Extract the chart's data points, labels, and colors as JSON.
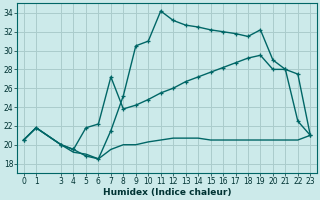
{
  "title": "",
  "xlabel": "Humidex (Indice chaleur)",
  "bg_color": "#cceaea",
  "grid_color": "#aacccc",
  "line_color": "#006666",
  "xlim": [
    -0.5,
    23.5
  ],
  "ylim": [
    17,
    35
  ],
  "xtick_positions": [
    0,
    1,
    3,
    4,
    5,
    6,
    7,
    8,
    9,
    10,
    11,
    12,
    13,
    14,
    15,
    16,
    17,
    18,
    19,
    20,
    21,
    22,
    23
  ],
  "xtick_labels": [
    "0",
    "1",
    "3",
    "4",
    "5",
    "6",
    "7",
    "8",
    "9",
    "10",
    "11",
    "12",
    "13",
    "14",
    "15",
    "16",
    "17",
    "18",
    "19",
    "20",
    "21",
    "22",
    "23"
  ],
  "ytick_positions": [
    18,
    20,
    22,
    24,
    26,
    28,
    30,
    32,
    34
  ],
  "ytick_labels": [
    "18",
    "20",
    "22",
    "24",
    "26",
    "28",
    "30",
    "32",
    "34"
  ],
  "curve1_x": [
    0,
    1,
    3,
    4,
    5,
    6,
    7,
    8,
    9,
    10,
    11,
    12,
    13,
    14,
    15,
    16,
    17,
    18,
    19,
    20,
    21,
    22,
    23
  ],
  "curve1_y": [
    20.5,
    21.8,
    20.0,
    19.5,
    18.8,
    18.5,
    21.5,
    25.2,
    30.5,
    31.0,
    34.2,
    33.2,
    32.7,
    32.5,
    32.2,
    32.0,
    31.8,
    31.5,
    32.2,
    29.0,
    28.0,
    22.5,
    21.0
  ],
  "curve2_x": [
    0,
    1,
    3,
    4,
    5,
    6,
    7,
    8,
    9,
    10,
    11,
    12,
    13,
    14,
    15,
    16,
    17,
    18,
    19,
    20,
    21,
    22,
    23
  ],
  "curve2_y": [
    20.5,
    21.8,
    20.0,
    19.5,
    21.8,
    22.2,
    27.2,
    23.8,
    24.2,
    24.8,
    25.5,
    26.0,
    26.7,
    27.2,
    27.7,
    28.2,
    28.7,
    29.2,
    29.5,
    28.0,
    28.0,
    27.5,
    21.0
  ],
  "curve3_x": [
    0,
    1,
    3,
    4,
    5,
    6,
    7,
    8,
    9,
    10,
    11,
    12,
    13,
    14,
    15,
    16,
    17,
    18,
    19,
    20,
    21,
    22,
    23
  ],
  "curve3_y": [
    20.5,
    21.8,
    20.0,
    19.2,
    19.0,
    18.5,
    19.5,
    20.0,
    20.0,
    20.3,
    20.5,
    20.7,
    20.7,
    20.7,
    20.5,
    20.5,
    20.5,
    20.5,
    20.5,
    20.5,
    20.5,
    20.5,
    21.0
  ],
  "marker_size": 3.5,
  "lw": 1.0,
  "tick_fontsize": 5.5,
  "xlabel_fontsize": 6.5
}
